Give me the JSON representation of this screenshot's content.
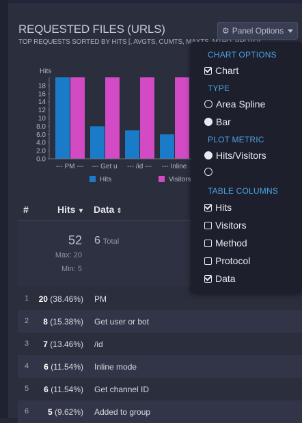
{
  "panel": {
    "title": "REQUESTED FILES (URLS)",
    "subtitle": "TOP REQUESTS SORTED BY HITS [, AVGTS, CUMTS, MAXTS, MTHD, PROTO]",
    "options_label": "Panel Options",
    "options_icon": "gear-icon"
  },
  "chart_data": {
    "type": "bar",
    "ylabel": "Hits",
    "ylim": [
      0,
      20
    ],
    "yticks": [
      "0.0",
      "2.0",
      "4.0",
      "6.0",
      "8.0",
      "10",
      "12",
      "14",
      "16",
      "18"
    ],
    "categories": [
      "--- PM ---",
      "--- Get u",
      "--- /id ---",
      "--- Inline"
    ],
    "series": [
      {
        "name": "Hits",
        "color": "#1a7bc9",
        "values": [
          20,
          8,
          7,
          6
        ]
      },
      {
        "name": "Visitors",
        "color": "#d24bc4",
        "values": [
          20,
          20,
          20,
          20
        ]
      }
    ]
  },
  "table": {
    "headers": {
      "index": "#",
      "hits": "Hits",
      "data": "Data"
    },
    "summary": {
      "total_hits": "52",
      "max": "Max: 20",
      "min": "Min: 5",
      "data_count": "6",
      "data_label": "Total"
    },
    "rows": [
      {
        "idx": "1",
        "hits": "20",
        "pct": "(38.46%)",
        "data": "PM"
      },
      {
        "idx": "2",
        "hits": "8",
        "pct": "(15.38%)",
        "data": "Get user or bot"
      },
      {
        "idx": "3",
        "hits": "7",
        "pct": "(13.46%)",
        "data": "/id"
      },
      {
        "idx": "4",
        "hits": "6",
        "pct": "(11.54%)",
        "data": "Inline mode"
      },
      {
        "idx": "5",
        "hits": "6",
        "pct": "(11.54%)",
        "data": "Get channel ID"
      },
      {
        "idx": "6",
        "hits": "5",
        "pct": "(9.62%)",
        "data": "Added to group"
      }
    ]
  },
  "dropdown": {
    "chart_options_header": "CHART OPTIONS",
    "chart_label": "Chart",
    "type_header": "TYPE",
    "area_spline_label": "Area Spline",
    "bar_label": "Bar",
    "plot_metric_header": "PLOT METRIC",
    "hits_visitors_label": "Hits/Visitors",
    "second_metric_label": "",
    "table_columns_header": "TABLE COLUMNS",
    "col_hits": "Hits",
    "col_visitors": "Visitors",
    "col_method": "Method",
    "col_protocol": "Protocol",
    "col_data": "Data"
  }
}
